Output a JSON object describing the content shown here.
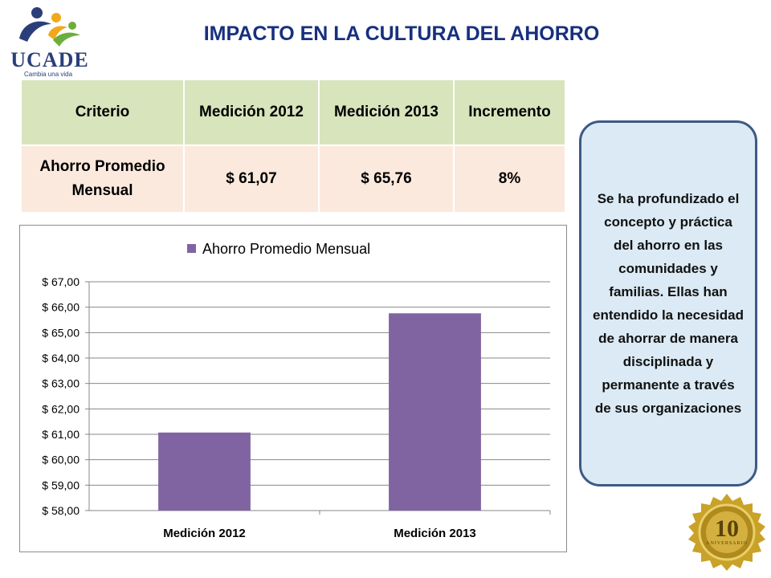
{
  "logo": {
    "name": "UCADE",
    "tagline": "Cambia una vida"
  },
  "title": "IMPACTO EN LA CULTURA DEL AHORRO",
  "table": {
    "headers": [
      "Criterio",
      "Medición 2012",
      "Medición 2013",
      "Incremento"
    ],
    "row": {
      "criterio": "Ahorro Promedio Mensual",
      "m2012": "$ 61,07",
      "m2013": "$ 65,76",
      "incremento": "8%"
    }
  },
  "chart_data": {
    "type": "bar",
    "categories": [
      "Medición 2012",
      "Medición 2013"
    ],
    "series": [
      {
        "name": "Ahorro Promedio Mensual",
        "values": [
          61.07,
          65.76
        ],
        "color": "#8064a2"
      }
    ],
    "ylim": [
      58,
      67
    ],
    "yticks": [
      "$ 58,00",
      "$ 59,00",
      "$ 60,00",
      "$ 61,00",
      "$ 62,00",
      "$ 63,00",
      "$ 64,00",
      "$ 65,00",
      "$ 66,00",
      "$ 67,00"
    ],
    "legend": "top",
    "grid": true
  },
  "callout": "Se ha profundizado el concepto y práctica del ahorro en las comunidades y familias. Ellas han entendido la necesidad de ahorrar de manera disciplinada y permanente a través de sus organizaciones",
  "seal": {
    "label": "10 ANIVERSARIO"
  },
  "colors": {
    "title": "#17307e",
    "header_bg": "#d8e4bc",
    "row_bg": "#fbe9dd",
    "callout_bg": "#dbeaf4",
    "callout_border": "#3d5a86",
    "seal_gold": "#c9a227"
  }
}
